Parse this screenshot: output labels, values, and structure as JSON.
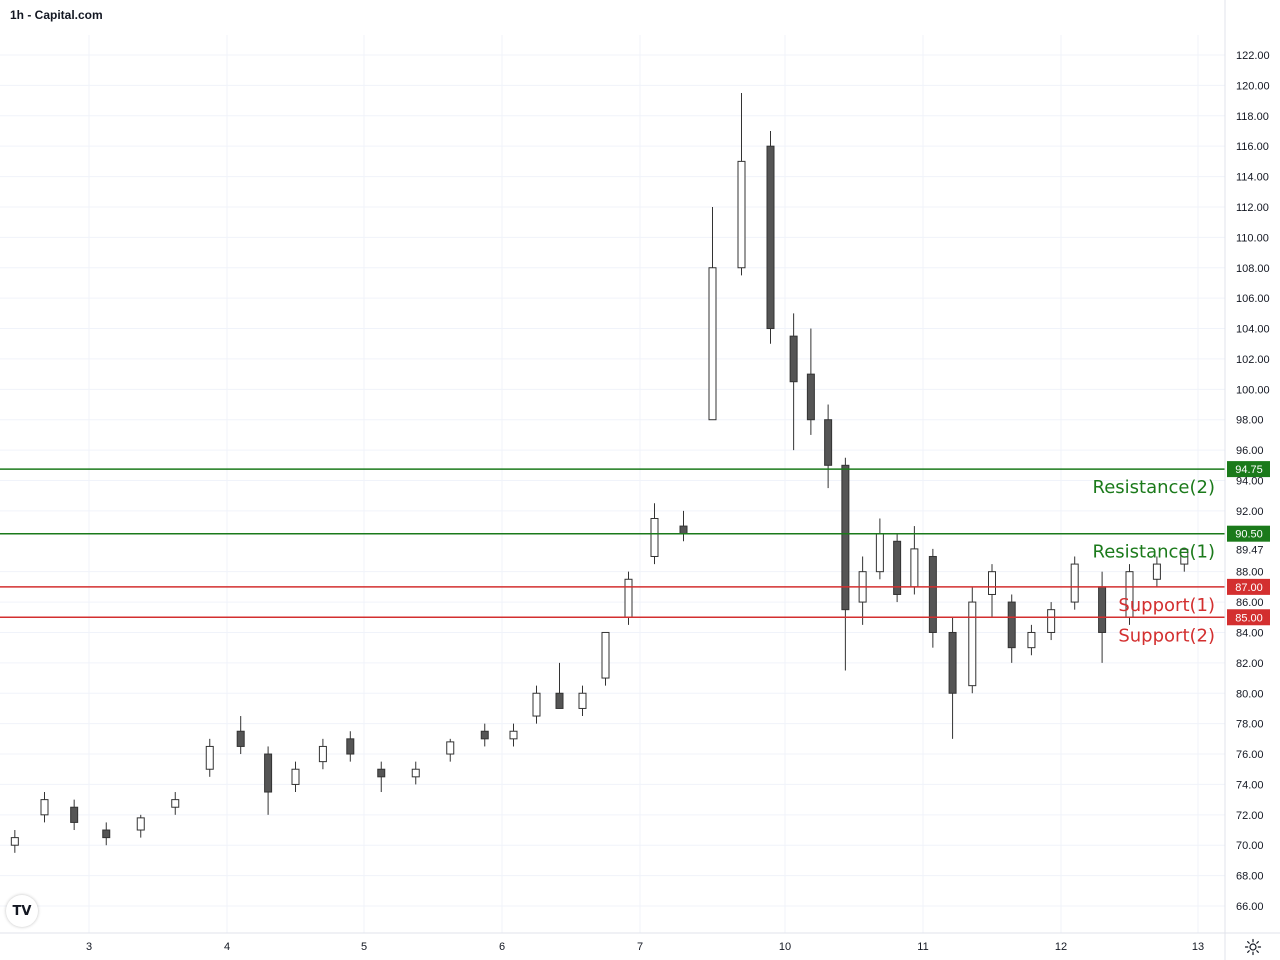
{
  "header": {
    "title": "1h - Capital.com"
  },
  "logo": {
    "text": "TV"
  },
  "icons": {
    "logo": "tradingview-logo-icon",
    "settings": "gear-icon"
  },
  "colors": {
    "resistance": "#1b7a1b",
    "support": "#d32f2f",
    "current_price_bg": "#ffffff",
    "candle_up": "#ffffff",
    "candle_down": "#555555",
    "wick": "#333333",
    "grid": "#f0f3fa",
    "axis_text": "#131722"
  },
  "chart_data": {
    "type": "candlestick",
    "timeframe": "1h",
    "ylim": [
      64,
      123
    ],
    "y_ticks": [
      "66.00",
      "68.00",
      "70.00",
      "72.00",
      "74.00",
      "76.00",
      "78.00",
      "80.00",
      "82.00",
      "84.00",
      "86.00",
      "88.00",
      "92.00",
      "94.00",
      "96.00",
      "98.00",
      "100.00",
      "102.00",
      "104.00",
      "106.00",
      "108.00",
      "110.00",
      "112.00",
      "114.00",
      "116.00",
      "118.00",
      "120.00",
      "122.00"
    ],
    "x_ticks": [
      "3",
      "4",
      "5",
      "6",
      "7",
      "10",
      "11",
      "12",
      "13"
    ],
    "grid": true,
    "levels": [
      {
        "label": "Resistance(2)",
        "value": 94.75,
        "value_label": "94.75",
        "kind": "resistance"
      },
      {
        "label": "Resistance(1)",
        "value": 90.5,
        "value_label": "90.50",
        "kind": "resistance"
      },
      {
        "label": "Support(1)",
        "value": 87.0,
        "value_label": "87.00",
        "kind": "support"
      },
      {
        "label": "Support(2)",
        "value": 85.0,
        "value_label": "85.00",
        "kind": "support"
      }
    ],
    "current_price": {
      "value": 89.47,
      "label": "89.47"
    },
    "series_ohlc_approx": [
      {
        "day": "2",
        "o": 70.0,
        "h": 71.0,
        "l": 69.5,
        "c": 70.5
      },
      {
        "day": "2",
        "o": 72.0,
        "h": 73.5,
        "l": 71.5,
        "c": 73.0
      },
      {
        "day": "2",
        "o": 72.5,
        "h": 73.0,
        "l": 71.0,
        "c": 71.5
      },
      {
        "day": "3",
        "o": 71.0,
        "h": 71.5,
        "l": 70.0,
        "c": 70.5
      },
      {
        "day": "3",
        "o": 71.0,
        "h": 72.0,
        "l": 70.5,
        "c": 71.8
      },
      {
        "day": "3",
        "o": 72.5,
        "h": 73.5,
        "l": 72.0,
        "c": 73.0
      },
      {
        "day": "3",
        "o": 75.0,
        "h": 77.0,
        "l": 74.5,
        "c": 76.5
      },
      {
        "day": "4",
        "o": 77.5,
        "h": 78.5,
        "l": 76.0,
        "c": 76.5
      },
      {
        "day": "4",
        "o": 76.0,
        "h": 76.5,
        "l": 72.0,
        "c": 73.5
      },
      {
        "day": "4",
        "o": 74.0,
        "h": 75.5,
        "l": 73.5,
        "c": 75.0
      },
      {
        "day": "4",
        "o": 75.5,
        "h": 77.0,
        "l": 75.0,
        "c": 76.5
      },
      {
        "day": "4",
        "o": 77.0,
        "h": 77.5,
        "l": 75.5,
        "c": 76.0
      },
      {
        "day": "5",
        "o": 75.0,
        "h": 75.5,
        "l": 73.5,
        "c": 74.5
      },
      {
        "day": "5",
        "o": 74.5,
        "h": 75.5,
        "l": 74.0,
        "c": 75.0
      },
      {
        "day": "5",
        "o": 76.0,
        "h": 77.0,
        "l": 75.5,
        "c": 76.8
      },
      {
        "day": "5",
        "o": 77.5,
        "h": 78.0,
        "l": 76.5,
        "c": 77.0
      },
      {
        "day": "6",
        "o": 77.0,
        "h": 78.0,
        "l": 76.5,
        "c": 77.5
      },
      {
        "day": "6",
        "o": 78.5,
        "h": 80.5,
        "l": 78.0,
        "c": 80.0
      },
      {
        "day": "6",
        "o": 80.0,
        "h": 82.0,
        "l": 79.0,
        "c": 79.0
      },
      {
        "day": "6",
        "o": 79.0,
        "h": 80.5,
        "l": 78.5,
        "c": 80.0
      },
      {
        "day": "6",
        "o": 81.0,
        "h": 84.0,
        "l": 80.5,
        "c": 84.0
      },
      {
        "day": "6",
        "o": 85.0,
        "h": 88.0,
        "l": 84.5,
        "c": 87.5
      },
      {
        "day": "7",
        "o": 89.0,
        "h": 92.5,
        "l": 88.5,
        "c": 91.5
      },
      {
        "day": "7",
        "o": 91.0,
        "h": 92.0,
        "l": 90.0,
        "c": 90.5
      },
      {
        "day": "7",
        "o": 98.0,
        "h": 112.0,
        "l": 98.0,
        "c": 108.0
      },
      {
        "day": "7",
        "o": 108.0,
        "h": 119.5,
        "l": 107.5,
        "c": 115.0
      },
      {
        "day": "7",
        "o": 116.0,
        "h": 117.0,
        "l": 103.0,
        "c": 104.0
      },
      {
        "day": "10",
        "o": 103.5,
        "h": 105.0,
        "l": 96.0,
        "c": 100.5
      },
      {
        "day": "10",
        "o": 101.0,
        "h": 104.0,
        "l": 97.0,
        "c": 98.0
      },
      {
        "day": "10",
        "o": 98.0,
        "h": 99.0,
        "l": 93.5,
        "c": 95.0
      },
      {
        "day": "10",
        "o": 95.0,
        "h": 95.5,
        "l": 81.5,
        "c": 85.5
      },
      {
        "day": "10",
        "o": 86.0,
        "h": 89.0,
        "l": 84.5,
        "c": 88.0
      },
      {
        "day": "10",
        "o": 88.0,
        "h": 91.5,
        "l": 87.5,
        "c": 90.5
      },
      {
        "day": "10",
        "o": 90.0,
        "h": 90.5,
        "l": 86.0,
        "c": 86.5
      },
      {
        "day": "10",
        "o": 87.0,
        "h": 91.0,
        "l": 86.5,
        "c": 89.5
      },
      {
        "day": "11",
        "o": 89.0,
        "h": 89.5,
        "l": 83.0,
        "c": 84.0
      },
      {
        "day": "11",
        "o": 84.0,
        "h": 85.0,
        "l": 77.0,
        "c": 80.0
      },
      {
        "day": "11",
        "o": 80.5,
        "h": 87.0,
        "l": 80.0,
        "c": 86.0
      },
      {
        "day": "11",
        "o": 86.5,
        "h": 88.5,
        "l": 85.0,
        "c": 88.0
      },
      {
        "day": "11",
        "o": 86.0,
        "h": 86.5,
        "l": 82.0,
        "c": 83.0
      },
      {
        "day": "11",
        "o": 83.0,
        "h": 84.5,
        "l": 82.5,
        "c": 84.0
      },
      {
        "day": "11",
        "o": 84.0,
        "h": 86.0,
        "l": 83.5,
        "c": 85.5
      },
      {
        "day": "12",
        "o": 86.0,
        "h": 89.0,
        "l": 85.5,
        "c": 88.5
      },
      {
        "day": "12",
        "o": 87.0,
        "h": 88.0,
        "l": 82.0,
        "c": 84.0
      },
      {
        "day": "12",
        "o": 85.0,
        "h": 88.5,
        "l": 84.5,
        "c": 88.0
      },
      {
        "day": "12",
        "o": 87.5,
        "h": 89.0,
        "l": 87.0,
        "c": 88.5
      },
      {
        "day": "12",
        "o": 88.5,
        "h": 89.5,
        "l": 88.0,
        "c": 89.47
      }
    ]
  }
}
